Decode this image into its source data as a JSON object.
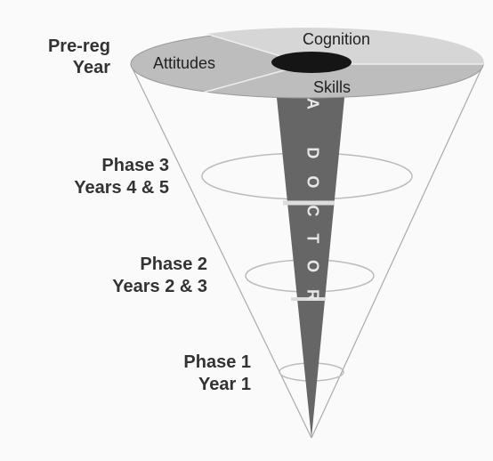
{
  "levels": [
    {
      "lines": [
        "Pre-reg",
        "Year"
      ]
    },
    {
      "lines": [
        "Phase 3",
        "Years 4 & 5"
      ]
    },
    {
      "lines": [
        "Phase 2",
        "Years 2 & 3"
      ]
    },
    {
      "lines": [
        "Phase 1",
        "Year 1"
      ]
    }
  ],
  "domains": {
    "cognition": "Cognition",
    "attitudes": "Attitudes",
    "skills": "Skills"
  },
  "core": "A DOCTOR"
}
